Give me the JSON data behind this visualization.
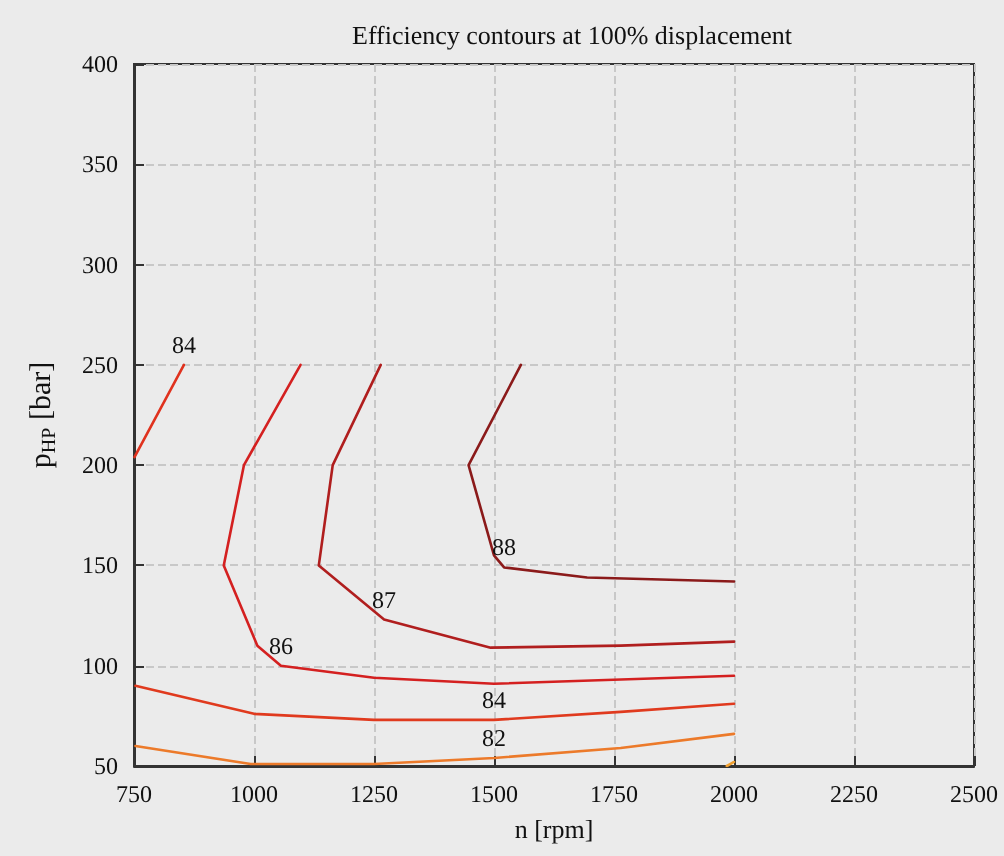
{
  "chart_data": {
    "type": "line",
    "title": "Efficiency contours at 100% displacement",
    "xlabel": "n [rpm]",
    "ylabel": "p$_{HP}$ [bar]",
    "xlim": [
      750,
      2500
    ],
    "xticks": [
      750,
      1000,
      1250,
      1500,
      1750,
      2000,
      2250,
      2500
    ],
    "ylim": [
      50,
      400
    ],
    "yticks": [
      50,
      100,
      150,
      200,
      250,
      300,
      350,
      400
    ],
    "grid": true,
    "legend": false,
    "line_style": "solid",
    "series": [
      {
        "name": "84",
        "color": "#e0321e",
        "x": [
          751,
          854
        ],
        "values": [
          204,
          250
        ]
      },
      {
        "name": "86",
        "color": "#d42020",
        "x": [
          1097,
          979,
          937,
          1007,
          1056,
          1250,
          1500,
          2000
        ],
        "values": [
          250,
          200,
          150,
          110,
          100,
          94,
          91,
          95
        ]
      },
      {
        "name": "87",
        "color": "#b01e1e",
        "x": [
          1264,
          1164,
          1135,
          1271,
          1493,
          1764,
          2000
        ],
        "values": [
          250,
          200,
          150,
          123,
          109,
          110,
          112
        ]
      },
      {
        "name": "88",
        "color": "#8b1a1a",
        "x": [
          1556,
          1447,
          1500,
          1521,
          1694,
          2000
        ],
        "values": [
          250,
          200,
          155,
          149,
          144,
          142
        ]
      },
      {
        "name": "84",
        "color": "#e03a1e",
        "x": [
          753,
          1000,
          1250,
          1500,
          1764,
          2000
        ],
        "values": [
          90,
          76,
          73,
          73,
          77,
          81
        ]
      },
      {
        "name": "82",
        "color": "#ec7a2a",
        "x": [
          753,
          993,
          1250,
          1500,
          1764,
          2000
        ],
        "values": [
          60,
          51,
          51,
          54,
          59,
          66
        ]
      },
      {
        "color": "#f0a030",
        "x": [
          1985,
          2000
        ],
        "values": [
          50,
          52
        ]
      }
    ]
  }
}
